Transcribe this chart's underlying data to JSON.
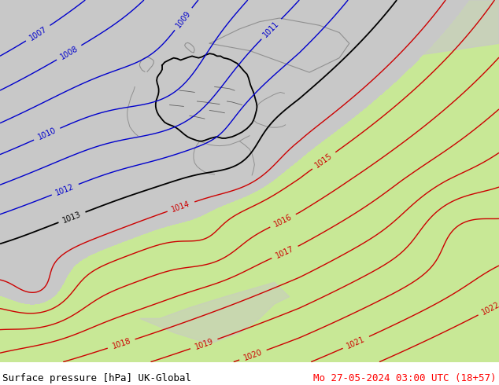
{
  "title_left": "Surface pressure [hPa] UK-Global",
  "title_right": "Mo 27-05-2024 03:00 UTC (18+57)",
  "bg_color": "#ffffff",
  "color_land_green": "#c8e896",
  "color_sea_gray": "#c8c8c8",
  "color_blue": "#0000cc",
  "color_black": "#000000",
  "color_red": "#cc0000",
  "color_gray_border": "#909090",
  "blue_levels": [
    1007,
    1008,
    1009,
    1010,
    1011,
    1012
  ],
  "black_levels": [
    1013
  ],
  "red_levels": [
    1014,
    1015,
    1016,
    1017,
    1018,
    1019,
    1020,
    1021,
    1022
  ],
  "label_size": 7,
  "title_size": 9,
  "fig_width": 6.34,
  "fig_height": 4.9,
  "dpi": 100
}
